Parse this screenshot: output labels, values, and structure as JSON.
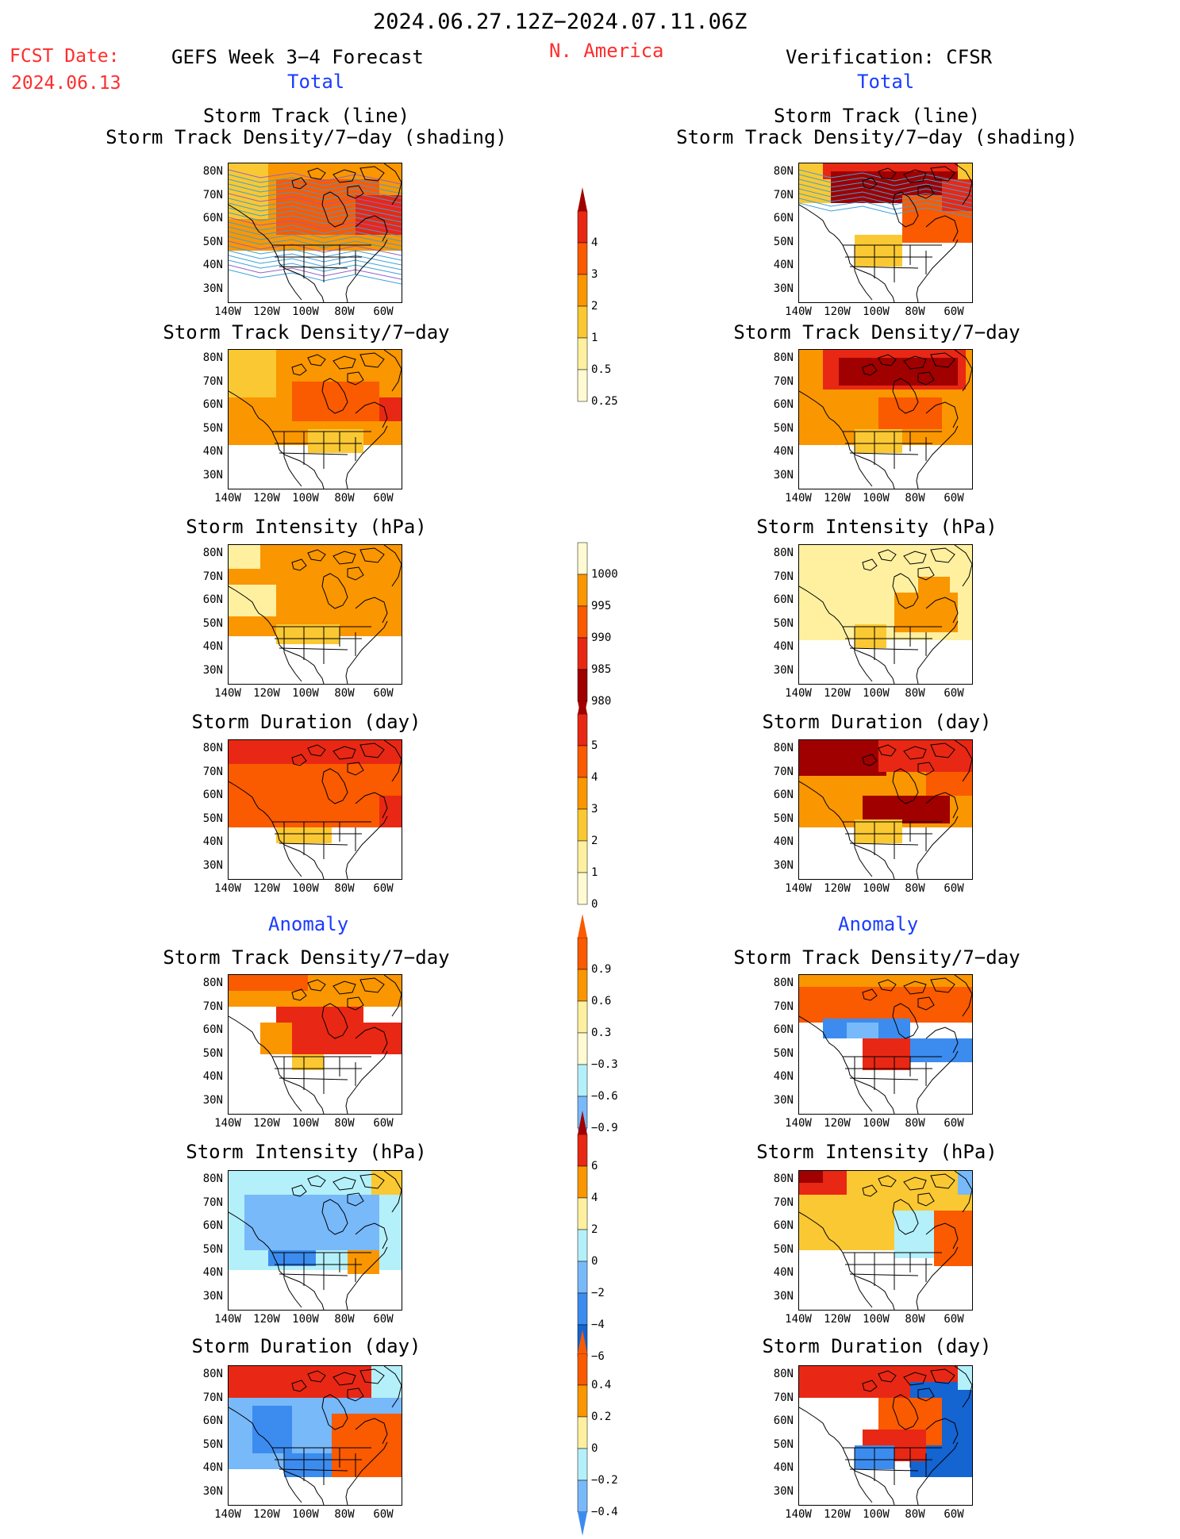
{
  "header": {
    "date_range": "2024.06.27.12Z−2024.07.11.06Z",
    "fcst_label": "FCST Date:",
    "fcst_date": "2024.06.13",
    "forecast_title": "GEFS Week 3−4 Forecast",
    "region": "N. America",
    "verification": "Verification: CFSR"
  },
  "sections": {
    "total": "Total",
    "anomaly": "Anomaly"
  },
  "panel_titles": {
    "track_line": "Storm Track (line)",
    "track_shading": "Storm Track Density/7−day (shading)",
    "density": "Storm Track Density/7−day",
    "intensity": "Storm Intensity (hPa)",
    "duration": "Storm Duration (day)"
  },
  "axes": {
    "lat_ticks": [
      "80N",
      "70N",
      "60N",
      "50N",
      "40N",
      "30N"
    ],
    "lon_ticks": [
      "140W",
      "120W",
      "100W",
      "80W",
      "60W"
    ]
  },
  "colorbars": {
    "density_total": [
      "4",
      "3",
      "2",
      "1",
      "0.5",
      "0.25"
    ],
    "intensity_total": [
      "1000",
      "995",
      "990",
      "985",
      "980"
    ],
    "duration_total": [
      "5",
      "4",
      "3",
      "2",
      "1",
      "0"
    ],
    "density_anom": [
      "0.9",
      "0.6",
      "0.3",
      "−0.3",
      "−0.6",
      "−0.9"
    ],
    "intensity_anom": [
      "6",
      "4",
      "2",
      "0",
      "−2",
      "−4",
      "−6"
    ],
    "duration_anom": [
      "0.4",
      "0.2",
      "0",
      "−0.2",
      "−0.4"
    ]
  },
  "colors": {
    "dark_red": "#a00000",
    "red": "#e82814",
    "orange_red": "#fa5a00",
    "orange": "#fa9600",
    "light_orange": "#fac832",
    "yellow": "#fff0a0",
    "cream": "#fffad2",
    "light_blue": "#b4f0fa",
    "sky_blue": "#78b9fa",
    "blue": "#3c8cf0",
    "dark_blue": "#1464d2",
    "track_blue": "#3ca0dc",
    "track_purple": "#9660c8"
  }
}
